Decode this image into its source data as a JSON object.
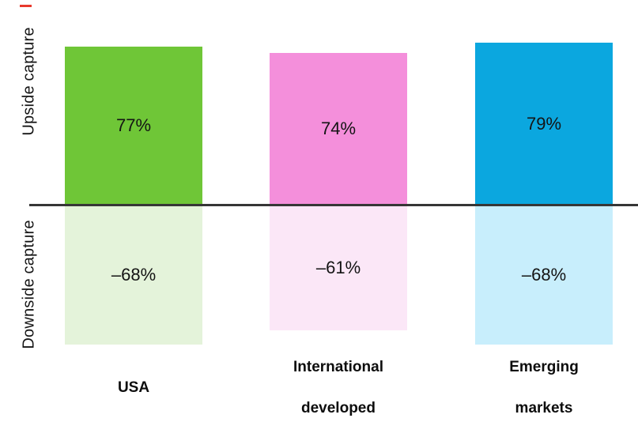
{
  "chart_data": {
    "type": "bar",
    "title": "",
    "categories": [
      "USA",
      "International developed",
      "Emerging markets"
    ],
    "category_lines": [
      [
        "USA"
      ],
      [
        "International",
        "developed"
      ],
      [
        "Emerging",
        "markets"
      ]
    ],
    "series": [
      {
        "name": "Upside capture",
        "values": [
          77,
          74,
          79
        ],
        "display_labels": [
          "77%",
          "74%",
          "79%"
        ]
      },
      {
        "name": "Downside capture",
        "values": [
          -68,
          -61,
          -68
        ],
        "display_labels": [
          "–68%",
          "–61%",
          "–68%"
        ]
      }
    ],
    "y_axis": {
      "upper_region_label": "Upside capture",
      "lower_region_label": "Downside capture",
      "zero_baseline": true,
      "tick_labels_shown": false
    },
    "units": "percent",
    "grid": false,
    "legend": "none"
  },
  "colors": {
    "bars": [
      {
        "solid": "#6FC637",
        "light": "#E4F3DA"
      },
      {
        "solid": "#F48FDB",
        "light": "#FBE7F7"
      },
      {
        "solid": "#0BA7DF",
        "light": "#C8EEFC"
      }
    ],
    "axis_line": "#363636",
    "text": "#141414",
    "brand_dash": "#E8392C"
  }
}
